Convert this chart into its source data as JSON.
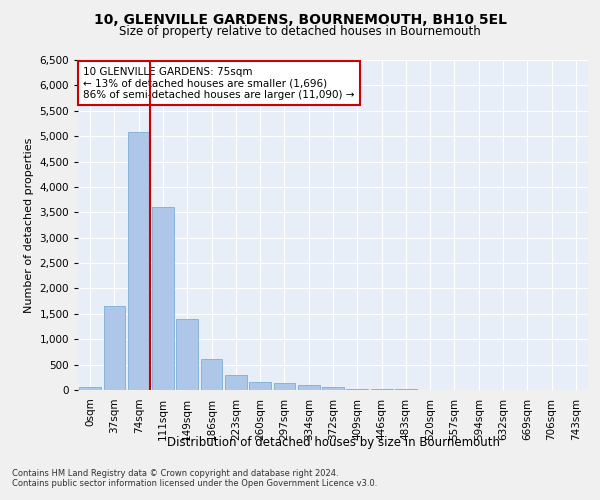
{
  "title_line1": "10, GLENVILLE GARDENS, BOURNEMOUTH, BH10 5EL",
  "title_line2": "Size of property relative to detached houses in Bournemouth",
  "xlabel": "Distribution of detached houses by size in Bournemouth",
  "ylabel": "Number of detached properties",
  "bar_color": "#aec6e8",
  "bar_edge_color": "#7aadd4",
  "marker_line_color": "#cc0000",
  "annotation_box_color": "#cc0000",
  "bg_color": "#e8eef8",
  "grid_color": "#ffffff",
  "fig_color": "#f0f0f0",
  "bin_labels": [
    "0sqm",
    "37sqm",
    "74sqm",
    "111sqm",
    "149sqm",
    "186sqm",
    "223sqm",
    "260sqm",
    "297sqm",
    "334sqm",
    "372sqm",
    "409sqm",
    "446sqm",
    "483sqm",
    "520sqm",
    "557sqm",
    "594sqm",
    "632sqm",
    "669sqm",
    "706sqm",
    "743sqm"
  ],
  "bar_values": [
    65,
    1650,
    5080,
    3600,
    1400,
    610,
    295,
    155,
    130,
    100,
    60,
    25,
    15,
    10,
    5,
    5,
    3,
    2,
    2,
    1,
    0
  ],
  "ylim": [
    0,
    6500
  ],
  "yticks": [
    0,
    500,
    1000,
    1500,
    2000,
    2500,
    3000,
    3500,
    4000,
    4500,
    5000,
    5500,
    6000,
    6500
  ],
  "marker_bin_index": 2,
  "annotation_text": "10 GLENVILLE GARDENS: 75sqm\n← 13% of detached houses are smaller (1,696)\n86% of semi-detached houses are larger (11,090) →",
  "footer_line1": "Contains HM Land Registry data © Crown copyright and database right 2024.",
  "footer_line2": "Contains public sector information licensed under the Open Government Licence v3.0."
}
